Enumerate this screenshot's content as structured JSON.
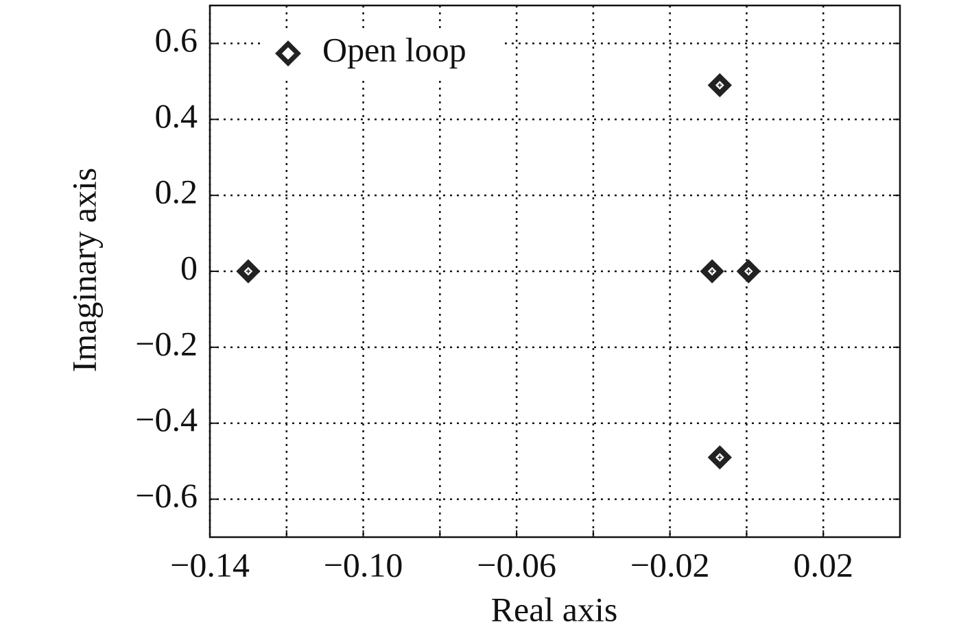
{
  "chart_data": {
    "type": "scatter",
    "x_label": "Real axis",
    "y_label": "Imaginary axis",
    "legend": "upper left",
    "grid": true,
    "color": "#222222",
    "xlim": [
      -0.14,
      0.04
    ],
    "ylim": [
      -0.7,
      0.7
    ],
    "xticks": [
      {
        "value": -0.14,
        "label": "−0.14"
      },
      {
        "value": -0.1,
        "label": "−0.10"
      },
      {
        "value": -0.06,
        "label": "−0.06"
      },
      {
        "value": -0.02,
        "label": "−0.02"
      },
      {
        "value": 0.02,
        "label": "0.02"
      }
    ],
    "xgrid": [
      -0.12,
      -0.08,
      -0.04,
      0
    ],
    "yticks": [
      0.6,
      0.4,
      0.2,
      0,
      {
        "value": -0.2,
        "label": "−0.2"
      },
      {
        "value": -0.4,
        "label": "−0.4"
      },
      {
        "value": -0.6,
        "label": "−0.6"
      }
    ],
    "series": [
      {
        "name": "Open loop",
        "color": "#222222",
        "x": [
          -0.13,
          -0.009,
          0.0005,
          -0.007,
          -0.007
        ],
        "values": [
          0,
          0,
          0,
          0.49,
          -0.49
        ]
      }
    ]
  }
}
